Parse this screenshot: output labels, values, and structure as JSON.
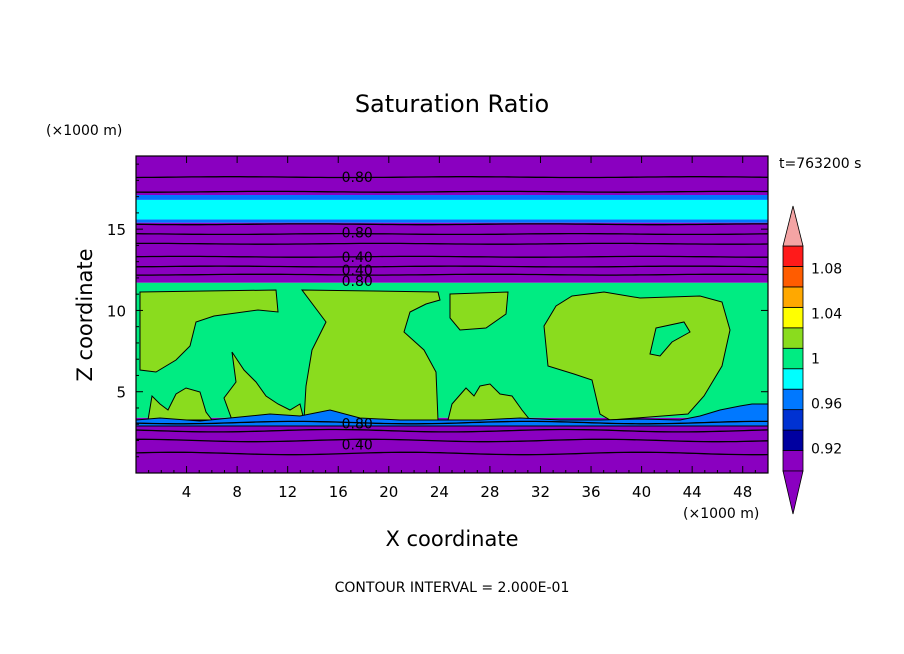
{
  "chart_data": {
    "type": "heatmap",
    "title": "Saturation Ratio",
    "xlabel": "X coordinate",
    "ylabel": "Z coordinate",
    "x_units": "(×1000 m)",
    "y_units": "(×1000 m)",
    "time_label": "t=763200 s",
    "footer": "CONTOUR INTERVAL = 2.000E-01",
    "xlim": [
      0,
      50
    ],
    "ylim": [
      0,
      19.5
    ],
    "x_ticks": [
      "4",
      "8",
      "12",
      "16",
      "20",
      "24",
      "28",
      "32",
      "36",
      "40",
      "44",
      "48"
    ],
    "x_tick_values": [
      4,
      8,
      12,
      16,
      20,
      24,
      28,
      32,
      36,
      40,
      44,
      48
    ],
    "y_ticks": [
      "5",
      "10",
      "15"
    ],
    "y_tick_values": [
      5,
      10,
      15
    ],
    "colorbar": {
      "labels": [
        "1.08",
        "1.04",
        "1",
        "0.96",
        "0.92"
      ],
      "label_values": [
        1.08,
        1.04,
        1.0,
        0.96,
        0.92
      ],
      "levels": [
        0.9,
        0.92,
        0.94,
        0.96,
        0.98,
        1.0,
        1.02,
        1.04,
        1.06,
        1.08,
        1.1
      ],
      "colors": [
        "#8a00c0",
        "#0000a0",
        "#0032d2",
        "#0078ff",
        "#00ffff",
        "#00ec82",
        "#8adc1e",
        "#ffff00",
        "#ffa800",
        "#ff5c00",
        "#ff1a1a"
      ],
      "under_color": "#8a00c0",
      "over_color": "#f4a4a4"
    },
    "bands": [
      {
        "z0": 0.0,
        "z1": 3.4,
        "level": "<0.90",
        "color": "#8a00c0"
      },
      {
        "z0": 11.7,
        "z1": 15.4,
        "level": "<0.90",
        "color": "#8a00c0"
      },
      {
        "z0": 15.4,
        "z1": 15.6,
        "level": "0.96-0.98",
        "color": "#0078ff"
      },
      {
        "z0": 15.6,
        "z1": 16.8,
        "level": "0.98-1.00",
        "color": "#00ffff"
      },
      {
        "z0": 16.8,
        "z1": 17.1,
        "level": "0.96-0.98",
        "color": "#0078ff"
      },
      {
        "z0": 17.1,
        "z1": 19.5,
        "level": "<0.90",
        "color": "#8a00c0"
      },
      {
        "z0": 3.4,
        "z1": 11.7,
        "level": "1.00-1.02",
        "color": "#00ec82"
      }
    ],
    "contour_lines_z": [
      1.2,
      2.0,
      2.6,
      3.1,
      12.2,
      12.7,
      13.3,
      14.1,
      14.7,
      15.3,
      17.3,
      18.2
    ],
    "contour_labels": [
      {
        "text": "0.80",
        "x": 17.5,
        "z": 18.2
      },
      {
        "text": "0.80",
        "x": 17.5,
        "z": 14.8
      },
      {
        "text": "0.40",
        "x": 17.5,
        "z": 13.3
      },
      {
        "text": "0.40",
        "x": 17.5,
        "z": 12.5
      },
      {
        "text": "0.80",
        "x": 17.5,
        "z": 11.8
      },
      {
        "text": "0.80",
        "x": 17.5,
        "z": 3.05
      },
      {
        "text": "0.40",
        "x": 17.5,
        "z": 1.75
      }
    ]
  }
}
